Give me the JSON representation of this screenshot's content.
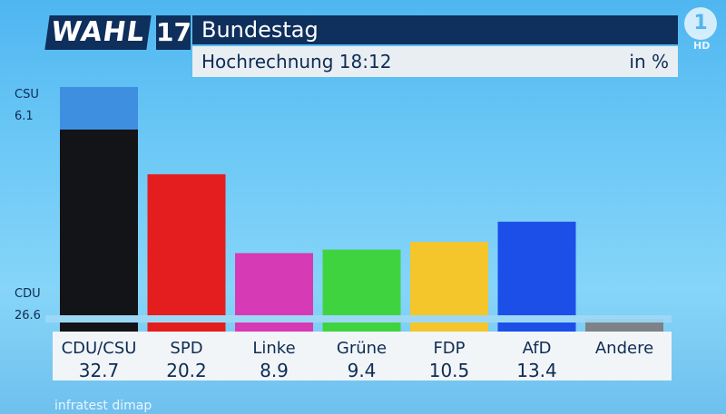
{
  "header": {
    "logo_word": "WAHL",
    "logo_number": "17",
    "title": "Bundestag",
    "subtitle": "Hochrechnung 18:12",
    "unit": "in %",
    "channel": "1",
    "channel_hd": "HD"
  },
  "footer": {
    "source": "infratest dimap"
  },
  "chart_data": {
    "type": "bar",
    "categories": [
      "CDU/CSU",
      "SPD",
      "Linke",
      "Grüne",
      "FDP",
      "AfD",
      "Andere"
    ],
    "values": [
      32.7,
      20.2,
      8.9,
      9.4,
      10.5,
      13.4,
      null
    ],
    "value_labels": [
      "32.7",
      "20.2",
      "8.9",
      "9.4",
      "10.5",
      "13.4",
      ""
    ],
    "stacked_first_bar": [
      {
        "name": "CDU",
        "value": 26.6,
        "label": "26.6",
        "color": "#121418"
      },
      {
        "name": "CSU",
        "value": 6.1,
        "label": "6.1",
        "color": "#3f8fe0"
      }
    ],
    "colors": [
      "#121418",
      "#e41e1e",
      "#d63ab4",
      "#3fd43f",
      "#f5c52c",
      "#1c4fe8",
      "#7c8287"
    ],
    "ylim": [
      0,
      32.7
    ]
  }
}
